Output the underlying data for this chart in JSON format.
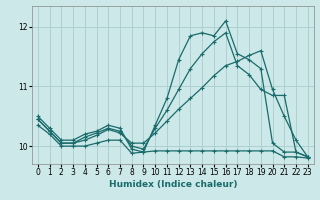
{
  "xlabel": "Humidex (Indice chaleur)",
  "xlim": [
    -0.5,
    23.5
  ],
  "ylim": [
    9.7,
    12.35
  ],
  "yticks": [
    10,
    11,
    12
  ],
  "xticks": [
    0,
    1,
    2,
    3,
    4,
    5,
    6,
    7,
    8,
    9,
    10,
    11,
    12,
    13,
    14,
    15,
    16,
    17,
    18,
    19,
    20,
    21,
    22,
    23
  ],
  "bg_color": "#cce8e8",
  "line_color": "#1a6b6b",
  "grid_color": "#aacccc",
  "lines": [
    {
      "x": [
        0,
        1,
        2,
        3,
        4,
        5,
        6,
        7,
        8,
        9,
        10,
        11,
        12,
        13,
        14,
        15,
        16,
        17,
        18,
        19,
        20,
        21,
        22,
        23
      ],
      "y": [
        10.5,
        10.3,
        10.1,
        10.1,
        10.2,
        10.25,
        10.35,
        10.3,
        9.95,
        9.9,
        10.35,
        10.8,
        11.45,
        11.85,
        11.9,
        11.85,
        12.1,
        11.55,
        11.45,
        11.3,
        10.05,
        9.9,
        9.9,
        9.82
      ]
    },
    {
      "x": [
        0,
        1,
        2,
        3,
        4,
        5,
        6,
        7,
        8,
        9,
        10,
        11,
        12,
        13,
        14,
        15,
        16,
        17,
        18,
        19,
        20,
        21,
        22,
        23
      ],
      "y": [
        10.45,
        10.25,
        10.05,
        10.05,
        10.15,
        10.22,
        10.3,
        10.25,
        10.0,
        9.95,
        10.3,
        10.6,
        10.95,
        11.3,
        11.55,
        11.75,
        11.9,
        11.35,
        11.2,
        10.95,
        10.85,
        10.85,
        9.9,
        9.82
      ]
    },
    {
      "x": [
        0,
        1,
        2,
        3,
        4,
        5,
        6,
        7,
        8,
        9,
        10,
        11,
        12,
        13,
        14,
        15,
        16,
        17,
        18,
        19,
        20,
        21,
        22,
        23
      ],
      "y": [
        10.45,
        10.25,
        10.05,
        10.05,
        10.1,
        10.18,
        10.28,
        10.22,
        10.05,
        10.05,
        10.22,
        10.42,
        10.62,
        10.8,
        10.98,
        11.18,
        11.35,
        11.42,
        11.52,
        11.6,
        10.95,
        10.5,
        10.1,
        9.82
      ]
    },
    {
      "x": [
        0,
        1,
        2,
        3,
        4,
        5,
        6,
        7,
        8,
        9,
        10,
        11,
        12,
        13,
        14,
        15,
        16,
        17,
        18,
        19,
        20,
        21,
        22,
        23
      ],
      "y": [
        10.35,
        10.2,
        10.0,
        10.0,
        10.0,
        10.05,
        10.1,
        10.1,
        9.88,
        9.9,
        9.92,
        9.92,
        9.92,
        9.92,
        9.92,
        9.92,
        9.92,
        9.92,
        9.92,
        9.92,
        9.92,
        9.82,
        9.82,
        9.8
      ]
    }
  ]
}
